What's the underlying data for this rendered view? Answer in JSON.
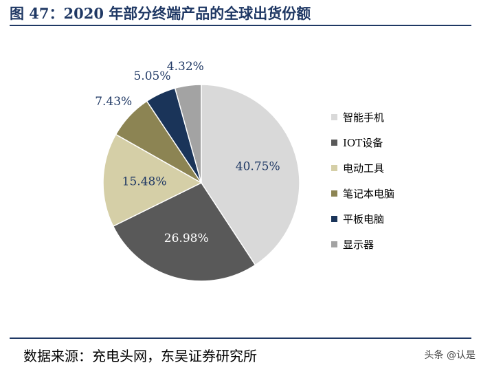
{
  "header": {
    "title": "图 47：2020 年部分终端产品的全球出货份额"
  },
  "footer": {
    "source": "数据来源：充电头网，东吴证券研究所",
    "watermark": "头条 @认是"
  },
  "chart_data": {
    "type": "pie",
    "title": "",
    "legend_position": "right",
    "slices": [
      {
        "name": "智能手机",
        "value": 40.75,
        "label": "40.75%",
        "color": "#d9d9d9"
      },
      {
        "name": "IOT设备",
        "value": 26.98,
        "label": "26.98%",
        "color": "#595959"
      },
      {
        "name": "电动工具",
        "value": 15.48,
        "label": "15.48%",
        "color": "#d5cfa7"
      },
      {
        "name": "笔记本电脑",
        "value": 7.43,
        "label": "7.43%",
        "color": "#8c8453"
      },
      {
        "name": "平板电脑",
        "value": 5.05,
        "label": "5.05%",
        "color": "#1a3459"
      },
      {
        "name": "显示器",
        "value": 4.32,
        "label": "4.32%",
        "color": "#a3a3a3"
      }
    ]
  }
}
